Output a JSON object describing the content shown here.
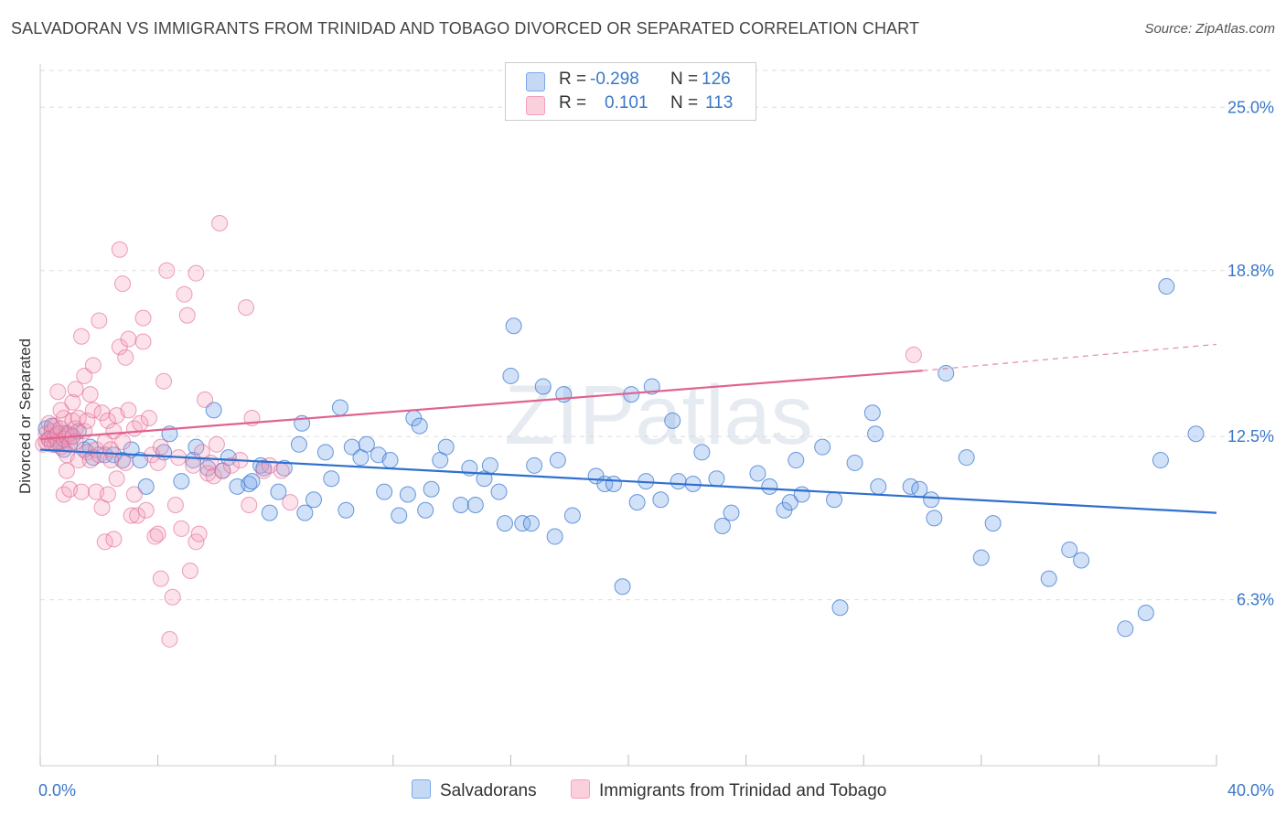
{
  "title": "SALVADORAN VS IMMIGRANTS FROM TRINIDAD AND TOBAGO DIVORCED OR SEPARATED CORRELATION CHART",
  "source": "Source: ZipAtlas.com",
  "watermark": "ZIPatlas",
  "colors": {
    "blue": "#7aa8e8",
    "blue_line": "#2f6fce",
    "pink": "#f5a0bb",
    "pink_line": "#e0628f",
    "axis_text": "#3a78c9"
  },
  "legend": {
    "rows": [
      {
        "r_label": "R = ",
        "r_value": "-0.298",
        "n_label": "N = ",
        "n_value": "126"
      },
      {
        "r_label": "R = ",
        "r_value": "0.101",
        "n_label": "N = ",
        "n_value": "113"
      }
    ]
  },
  "bottom_legend": [
    "Salvadorans",
    "Immigrants from Trinidad and Tobago"
  ],
  "chart_data": {
    "type": "scatter",
    "ylabel": "Divorced or Separated",
    "xlim": [
      0,
      40
    ],
    "ylim": [
      0,
      26.4
    ],
    "x_tick_labels": [
      {
        "value": 0,
        "label": "0.0%"
      },
      {
        "value": 40,
        "label": "40.0%"
      }
    ],
    "y_tick_labels": [
      {
        "value": 6.3,
        "label": "6.3%"
      },
      {
        "value": 12.5,
        "label": "12.5%"
      },
      {
        "value": 18.8,
        "label": "18.8%"
      },
      {
        "value": 25.0,
        "label": "25.0%"
      }
    ],
    "series": [
      {
        "name": "Salvadorans",
        "r": -0.298,
        "n": 126,
        "trend": {
          "x0": 0,
          "y0": 12.0,
          "x1": 40,
          "y1": 9.6
        },
        "points": [
          [
            0.2,
            12.8
          ],
          [
            0.3,
            12.4
          ],
          [
            0.4,
            12.9
          ],
          [
            0.5,
            12.2
          ],
          [
            0.6,
            12.6
          ],
          [
            0.7,
            12.3
          ],
          [
            0.8,
            12.0
          ],
          [
            0.9,
            12.6
          ],
          [
            1.0,
            12.2
          ],
          [
            1.1,
            12.5
          ],
          [
            1.3,
            12.7
          ],
          [
            1.5,
            12.0
          ],
          [
            1.7,
            12.1
          ],
          [
            1.8,
            11.7
          ],
          [
            2.2,
            11.8
          ],
          [
            2.5,
            11.8
          ],
          [
            2.8,
            11.6
          ],
          [
            3.1,
            12.0
          ],
          [
            3.4,
            11.6
          ],
          [
            3.6,
            10.6
          ],
          [
            4.2,
            11.9
          ],
          [
            4.4,
            12.6
          ],
          [
            4.8,
            10.8
          ],
          [
            5.2,
            11.6
          ],
          [
            5.3,
            12.1
          ],
          [
            5.7,
            11.3
          ],
          [
            5.9,
            13.5
          ],
          [
            6.2,
            11.2
          ],
          [
            6.4,
            11.7
          ],
          [
            6.7,
            10.6
          ],
          [
            7.1,
            10.7
          ],
          [
            7.2,
            10.8
          ],
          [
            7.5,
            11.4
          ],
          [
            7.6,
            11.3
          ],
          [
            7.8,
            9.6
          ],
          [
            8.1,
            10.4
          ],
          [
            8.3,
            11.3
          ],
          [
            8.8,
            12.2
          ],
          [
            8.9,
            13.0
          ],
          [
            9.0,
            9.6
          ],
          [
            9.3,
            10.1
          ],
          [
            9.7,
            11.9
          ],
          [
            9.9,
            10.9
          ],
          [
            10.2,
            13.6
          ],
          [
            10.4,
            9.7
          ],
          [
            10.6,
            12.1
          ],
          [
            10.9,
            11.7
          ],
          [
            11.1,
            12.2
          ],
          [
            11.5,
            11.8
          ],
          [
            11.7,
            10.4
          ],
          [
            11.9,
            11.6
          ],
          [
            12.2,
            9.5
          ],
          [
            12.5,
            10.3
          ],
          [
            12.7,
            13.2
          ],
          [
            12.9,
            12.9
          ],
          [
            13.1,
            9.7
          ],
          [
            13.3,
            10.5
          ],
          [
            13.6,
            11.6
          ],
          [
            13.8,
            12.1
          ],
          [
            14.3,
            9.9
          ],
          [
            14.6,
            11.3
          ],
          [
            14.8,
            9.9
          ],
          [
            15.1,
            10.9
          ],
          [
            15.3,
            11.4
          ],
          [
            15.6,
            10.4
          ],
          [
            15.8,
            9.2
          ],
          [
            16.0,
            14.8
          ],
          [
            16.1,
            16.7
          ],
          [
            16.4,
            9.2
          ],
          [
            16.7,
            9.2
          ],
          [
            16.8,
            11.4
          ],
          [
            17.1,
            14.4
          ],
          [
            17.5,
            8.7
          ],
          [
            17.6,
            11.6
          ],
          [
            17.8,
            14.1
          ],
          [
            18.1,
            9.5
          ],
          [
            18.9,
            11.0
          ],
          [
            19.2,
            10.7
          ],
          [
            19.5,
            10.7
          ],
          [
            19.8,
            6.8
          ],
          [
            20.1,
            14.1
          ],
          [
            20.3,
            10.0
          ],
          [
            20.6,
            10.8
          ],
          [
            20.8,
            14.4
          ],
          [
            21.1,
            10.1
          ],
          [
            21.5,
            13.1
          ],
          [
            21.7,
            10.8
          ],
          [
            22.2,
            10.7
          ],
          [
            22.5,
            11.9
          ],
          [
            23.0,
            10.9
          ],
          [
            23.2,
            9.1
          ],
          [
            23.5,
            9.6
          ],
          [
            24.4,
            11.1
          ],
          [
            24.8,
            10.6
          ],
          [
            25.3,
            9.7
          ],
          [
            25.5,
            10.0
          ],
          [
            25.7,
            11.6
          ],
          [
            25.9,
            10.3
          ],
          [
            26.6,
            12.1
          ],
          [
            27.0,
            10.1
          ],
          [
            27.2,
            6.0
          ],
          [
            27.7,
            11.5
          ],
          [
            28.3,
            13.4
          ],
          [
            28.4,
            12.6
          ],
          [
            28.5,
            10.6
          ],
          [
            29.6,
            10.6
          ],
          [
            29.9,
            10.5
          ],
          [
            30.3,
            10.1
          ],
          [
            30.4,
            9.4
          ],
          [
            30.8,
            14.9
          ],
          [
            31.5,
            11.7
          ],
          [
            32.0,
            7.9
          ],
          [
            32.4,
            9.2
          ],
          [
            34.3,
            7.1
          ],
          [
            35.0,
            8.2
          ],
          [
            35.4,
            7.8
          ],
          [
            36.9,
            5.2
          ],
          [
            37.6,
            5.8
          ],
          [
            38.1,
            11.6
          ],
          [
            38.3,
            18.2
          ],
          [
            39.3,
            12.6
          ]
        ]
      },
      {
        "name": "Immigrants from Trinidad and Tobago",
        "r": 0.101,
        "n": 113,
        "trend": {
          "x0": 0,
          "y0": 12.4,
          "x1": 30,
          "y1": 15.0
        },
        "trend_dashed": {
          "x0": 30,
          "y0": 15.0,
          "x1": 40,
          "y1": 16.0
        },
        "points": [
          [
            0.1,
            12.2
          ],
          [
            0.2,
            12.6
          ],
          [
            0.2,
            12.3
          ],
          [
            0.3,
            13.0
          ],
          [
            0.3,
            12.4
          ],
          [
            0.4,
            12.7
          ],
          [
            0.4,
            12.2
          ],
          [
            0.5,
            12.5
          ],
          [
            0.5,
            12.9
          ],
          [
            0.6,
            12.3
          ],
          [
            0.6,
            12.6
          ],
          [
            0.7,
            12.8
          ],
          [
            0.7,
            12.1
          ],
          [
            0.8,
            12.4
          ],
          [
            0.8,
            13.2
          ],
          [
            0.9,
            12.5
          ],
          [
            0.9,
            11.8
          ],
          [
            1.0,
            12.6
          ],
          [
            1.0,
            12.2
          ],
          [
            1.1,
            13.1
          ],
          [
            1.1,
            12.5
          ],
          [
            1.2,
            12.3
          ],
          [
            1.2,
            12.8
          ],
          [
            0.6,
            14.2
          ],
          [
            0.7,
            13.5
          ],
          [
            0.8,
            10.3
          ],
          [
            0.9,
            11.2
          ],
          [
            1.0,
            10.5
          ],
          [
            1.1,
            13.8
          ],
          [
            1.2,
            14.3
          ],
          [
            1.3,
            11.6
          ],
          [
            1.3,
            13.2
          ],
          [
            1.4,
            16.3
          ],
          [
            1.4,
            10.4
          ],
          [
            1.5,
            14.8
          ],
          [
            1.5,
            12.7
          ],
          [
            1.6,
            11.9
          ],
          [
            1.6,
            13.1
          ],
          [
            1.7,
            14.1
          ],
          [
            1.7,
            11.6
          ],
          [
            1.8,
            13.5
          ],
          [
            1.8,
            15.2
          ],
          [
            1.9,
            10.4
          ],
          [
            1.9,
            12.0
          ],
          [
            2.0,
            16.9
          ],
          [
            2.0,
            11.8
          ],
          [
            2.1,
            13.4
          ],
          [
            2.1,
            9.8
          ],
          [
            2.2,
            12.3
          ],
          [
            2.2,
            8.5
          ],
          [
            2.3,
            10.3
          ],
          [
            2.3,
            13.1
          ],
          [
            2.4,
            12.0
          ],
          [
            2.4,
            11.6
          ],
          [
            2.5,
            8.6
          ],
          [
            2.5,
            12.7
          ],
          [
            2.6,
            13.3
          ],
          [
            2.6,
            10.9
          ],
          [
            2.7,
            19.6
          ],
          [
            2.7,
            15.9
          ],
          [
            2.8,
            18.3
          ],
          [
            2.8,
            12.3
          ],
          [
            2.9,
            11.5
          ],
          [
            2.9,
            15.5
          ],
          [
            3.0,
            16.2
          ],
          [
            3.0,
            13.5
          ],
          [
            3.1,
            9.5
          ],
          [
            3.2,
            10.3
          ],
          [
            3.2,
            12.8
          ],
          [
            3.3,
            9.5
          ],
          [
            3.4,
            13.0
          ],
          [
            3.5,
            16.1
          ],
          [
            3.5,
            17.0
          ],
          [
            3.6,
            9.7
          ],
          [
            3.7,
            13.2
          ],
          [
            3.8,
            11.8
          ],
          [
            3.9,
            8.7
          ],
          [
            4.0,
            11.5
          ],
          [
            4.0,
            8.8
          ],
          [
            4.1,
            7.1
          ],
          [
            4.1,
            12.1
          ],
          [
            4.2,
            14.6
          ],
          [
            4.3,
            18.8
          ],
          [
            4.4,
            4.8
          ],
          [
            4.5,
            6.4
          ],
          [
            4.6,
            9.9
          ],
          [
            4.7,
            11.7
          ],
          [
            4.8,
            9.0
          ],
          [
            4.9,
            17.9
          ],
          [
            5.0,
            17.1
          ],
          [
            5.1,
            7.4
          ],
          [
            5.2,
            11.4
          ],
          [
            5.3,
            18.7
          ],
          [
            5.3,
            8.5
          ],
          [
            5.4,
            8.8
          ],
          [
            5.5,
            11.9
          ],
          [
            5.6,
            13.9
          ],
          [
            5.7,
            11.1
          ],
          [
            5.8,
            11.5
          ],
          [
            5.9,
            11.0
          ],
          [
            6.0,
            12.2
          ],
          [
            6.1,
            20.6
          ],
          [
            6.2,
            11.2
          ],
          [
            6.5,
            11.4
          ],
          [
            6.8,
            11.6
          ],
          [
            7.0,
            17.4
          ],
          [
            7.1,
            9.9
          ],
          [
            7.2,
            13.2
          ],
          [
            7.6,
            11.2
          ],
          [
            7.8,
            11.4
          ],
          [
            8.2,
            11.2
          ],
          [
            8.5,
            10.0
          ],
          [
            29.7,
            15.6
          ]
        ]
      }
    ]
  }
}
